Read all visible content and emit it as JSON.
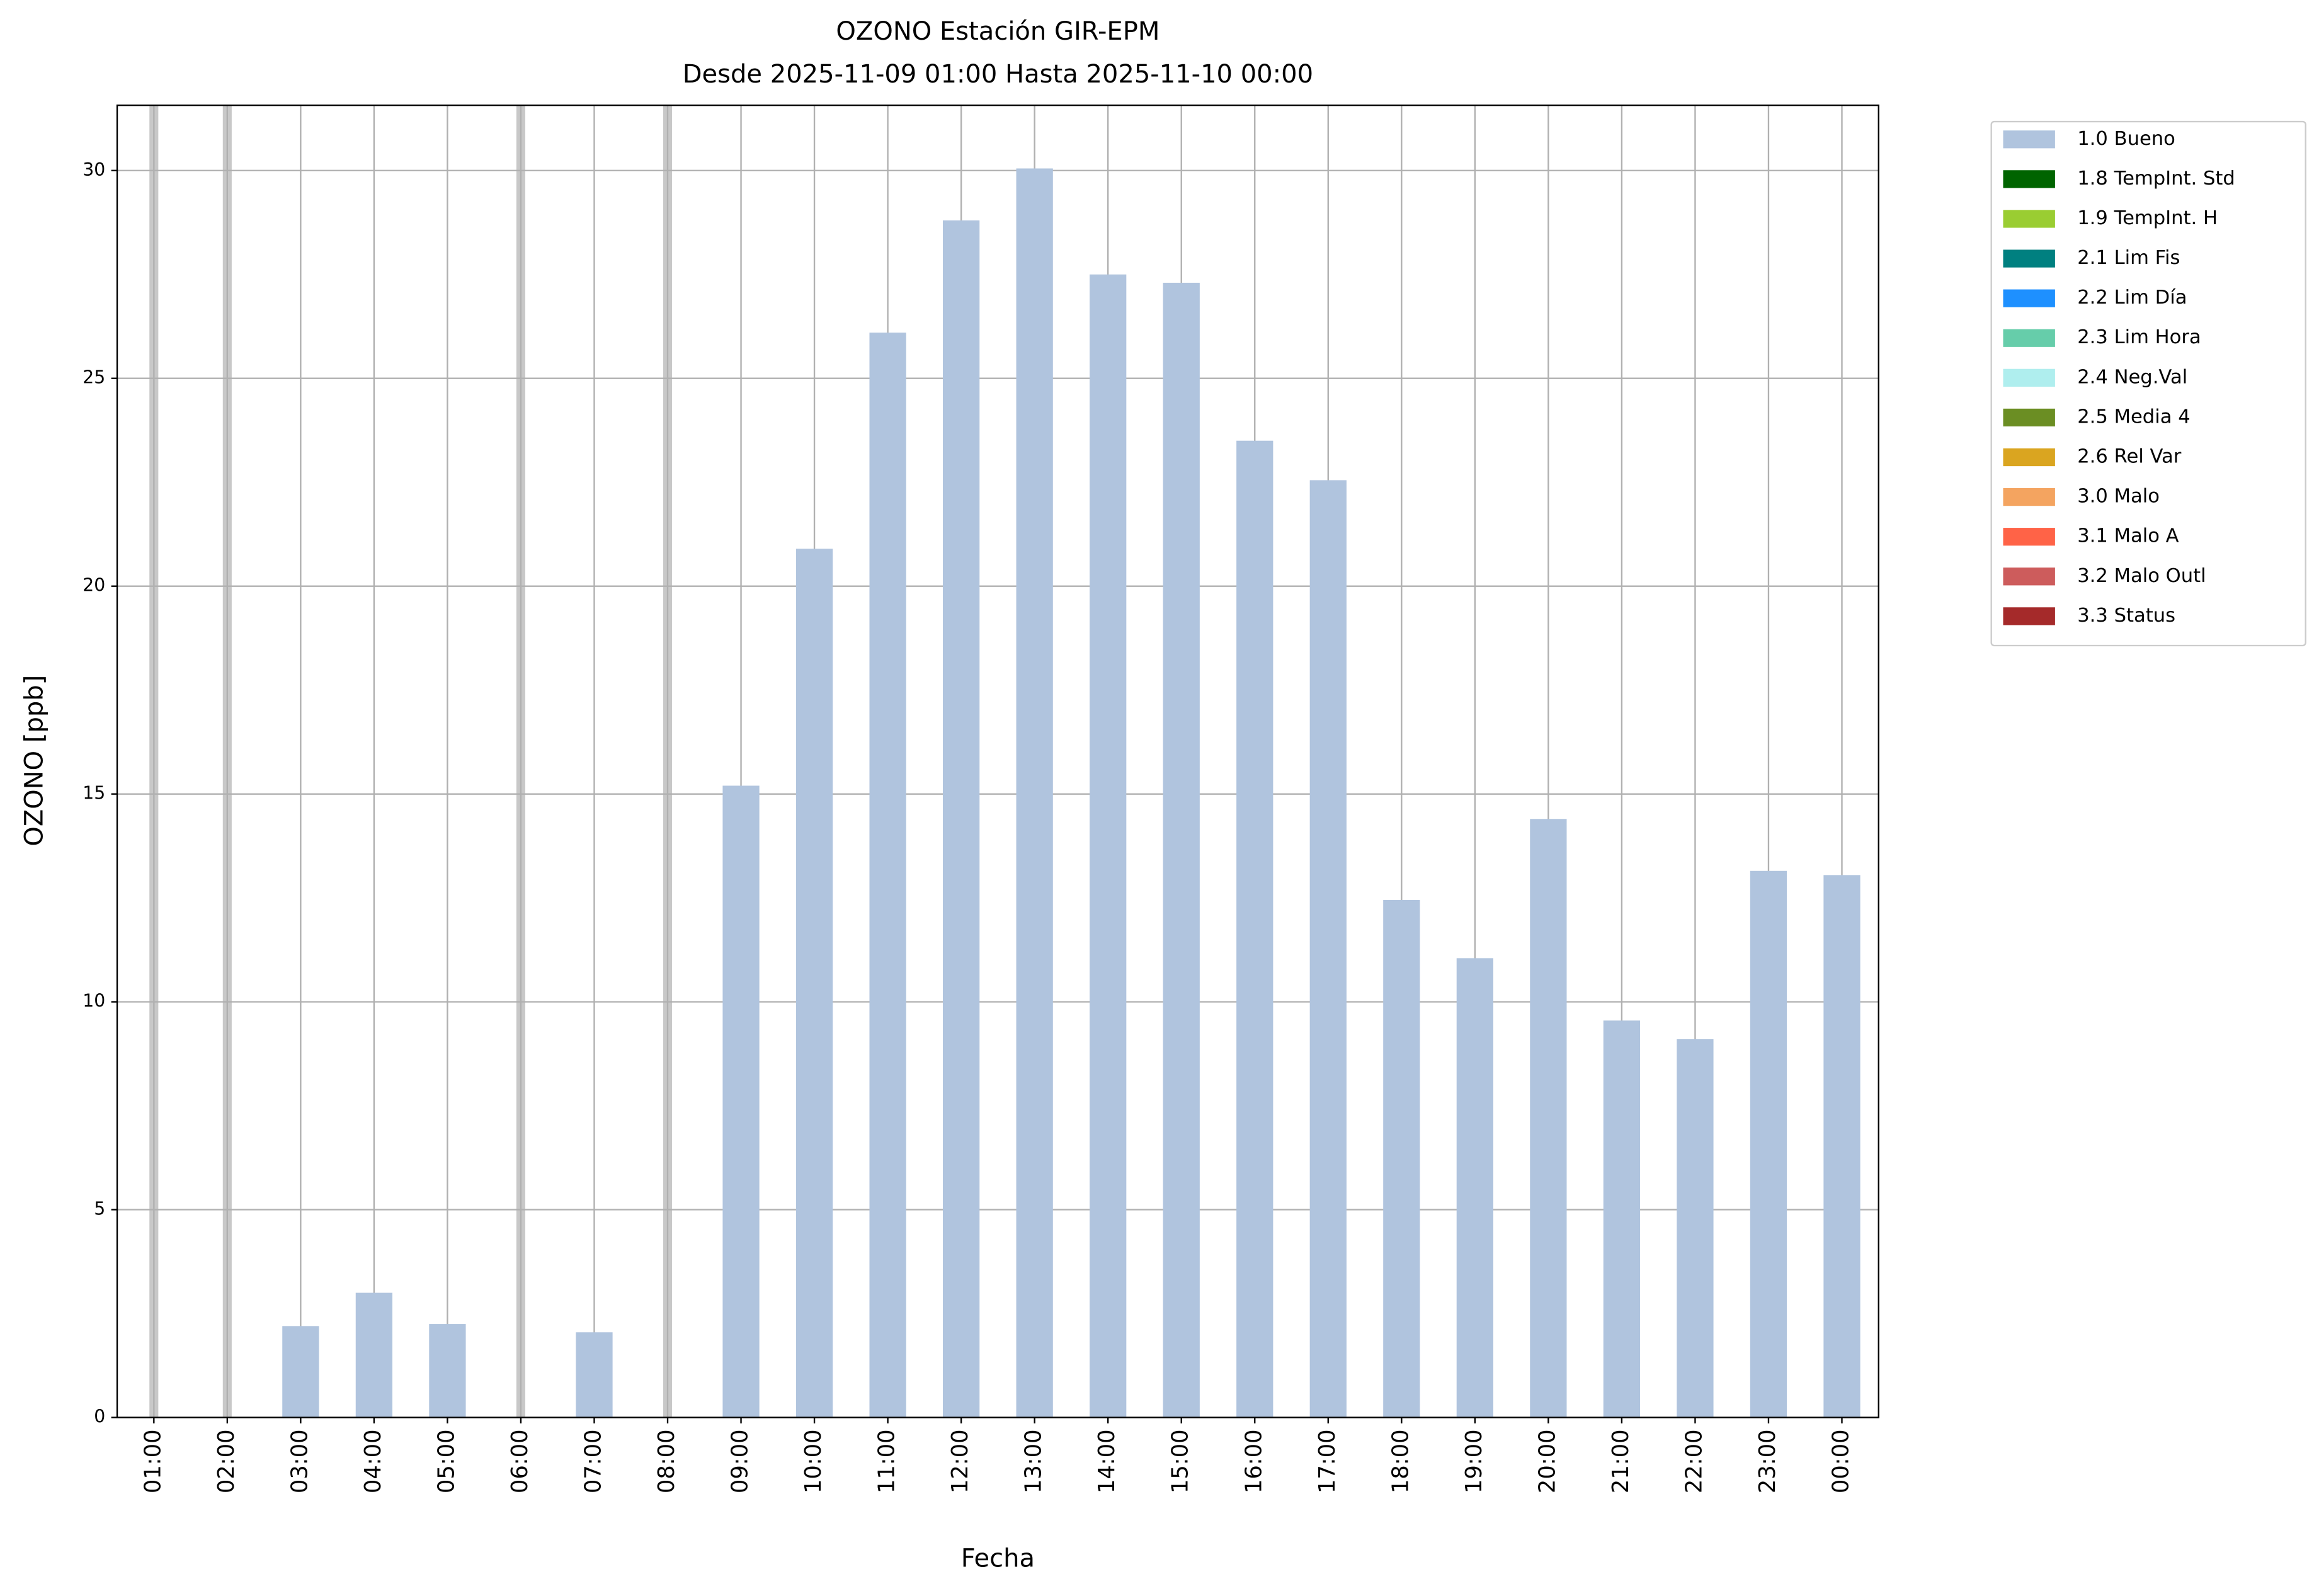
{
  "chart_data": {
    "type": "bar",
    "title": "OZONO Estación GIR-EPM",
    "subtitle": "Desde 2025-11-09 01:00 Hasta 2025-11-10 00:00",
    "x_label": "Fecha",
    "y_label": "OZONO [ppb]",
    "categories": [
      "01:00",
      "02:00",
      "03:00",
      "04:00",
      "05:00",
      "06:00",
      "07:00",
      "08:00",
      "09:00",
      "10:00",
      "11:00",
      "12:00",
      "13:00",
      "14:00",
      "15:00",
      "16:00",
      "17:00",
      "18:00",
      "19:00",
      "20:00",
      "21:00",
      "22:00",
      "23:00",
      "00:00"
    ],
    "series": [
      {
        "name": "1.0 Bueno",
        "color": "#b0c4de",
        "values": [
          null,
          null,
          2.2,
          3.0,
          2.25,
          null,
          2.05,
          null,
          15.2,
          20.9,
          26.1,
          28.8,
          30.05,
          27.5,
          27.3,
          23.5,
          22.55,
          12.45,
          11.05,
          14.4,
          9.55,
          9.1,
          13.15,
          13.05
        ]
      },
      {
        "name": "1.8 TempInt. Std",
        "color": "#006400",
        "values": [
          null,
          null,
          null,
          null,
          null,
          null,
          null,
          null,
          null,
          null,
          null,
          null,
          null,
          null,
          null,
          null,
          null,
          null,
          null,
          null,
          null,
          null,
          null,
          null
        ]
      },
      {
        "name": "1.9 TempInt. H",
        "color": "#9acd32",
        "values": [
          null,
          null,
          null,
          null,
          null,
          null,
          null,
          null,
          null,
          null,
          null,
          null,
          null,
          null,
          null,
          null,
          null,
          null,
          null,
          null,
          null,
          null,
          null,
          null
        ]
      },
      {
        "name": "2.1 Lim Fis",
        "color": "#008080",
        "values": [
          null,
          null,
          null,
          null,
          null,
          null,
          null,
          null,
          null,
          null,
          null,
          null,
          null,
          null,
          null,
          null,
          null,
          null,
          null,
          null,
          null,
          null,
          null,
          null
        ]
      },
      {
        "name": "2.2 Lim Día",
        "color": "#1e90ff",
        "values": [
          null,
          null,
          null,
          null,
          null,
          null,
          null,
          null,
          null,
          null,
          null,
          null,
          null,
          null,
          null,
          null,
          null,
          null,
          null,
          null,
          null,
          null,
          null,
          null
        ]
      },
      {
        "name": "2.3 Lim Hora",
        "color": "#66cdaa",
        "values": [
          null,
          null,
          null,
          null,
          null,
          null,
          null,
          null,
          null,
          null,
          null,
          null,
          null,
          null,
          null,
          null,
          null,
          null,
          null,
          null,
          null,
          null,
          null,
          null
        ]
      },
      {
        "name": "2.4 Neg.Val",
        "color": "#afeeee",
        "values": [
          null,
          null,
          null,
          null,
          null,
          null,
          null,
          null,
          null,
          null,
          null,
          null,
          null,
          null,
          null,
          null,
          null,
          null,
          null,
          null,
          null,
          null,
          null,
          null
        ]
      },
      {
        "name": "2.5 Media 4",
        "color": "#6b8e23",
        "values": [
          null,
          null,
          null,
          null,
          null,
          null,
          null,
          null,
          null,
          null,
          null,
          null,
          null,
          null,
          null,
          null,
          null,
          null,
          null,
          null,
          null,
          null,
          null,
          null
        ]
      },
      {
        "name": "2.6 Rel Var",
        "color": "#daa520",
        "values": [
          null,
          null,
          null,
          null,
          null,
          null,
          null,
          null,
          null,
          null,
          null,
          null,
          null,
          null,
          null,
          null,
          null,
          null,
          null,
          null,
          null,
          null,
          null,
          null
        ]
      },
      {
        "name": "3.0 Malo",
        "color": "#f4a460",
        "values": [
          null,
          null,
          null,
          null,
          null,
          null,
          null,
          null,
          null,
          null,
          null,
          null,
          null,
          null,
          null,
          null,
          null,
          null,
          null,
          null,
          null,
          null,
          null,
          null
        ]
      },
      {
        "name": "3.1 Malo A",
        "color": "#ff6347",
        "values": [
          null,
          null,
          null,
          null,
          null,
          null,
          null,
          null,
          null,
          null,
          null,
          null,
          null,
          null,
          null,
          null,
          null,
          null,
          null,
          null,
          null,
          null,
          null,
          null
        ]
      },
      {
        "name": "3.2 Malo Outl",
        "color": "#cd5c5c",
        "values": [
          null,
          null,
          null,
          null,
          null,
          null,
          null,
          null,
          null,
          null,
          null,
          null,
          null,
          null,
          null,
          null,
          null,
          null,
          null,
          null,
          null,
          null,
          null,
          null
        ]
      },
      {
        "name": "3.3 Status",
        "color": "#a52a2a",
        "values": [
          null,
          null,
          null,
          null,
          null,
          null,
          null,
          null,
          null,
          null,
          null,
          null,
          null,
          null,
          null,
          null,
          null,
          null,
          null,
          null,
          null,
          null,
          null,
          null
        ]
      }
    ],
    "ylim": [
      0,
      31.57
    ],
    "yticks": [
      0,
      5,
      10,
      15,
      20,
      25,
      30
    ],
    "grid": true,
    "legend": "outside-upper-right"
  }
}
